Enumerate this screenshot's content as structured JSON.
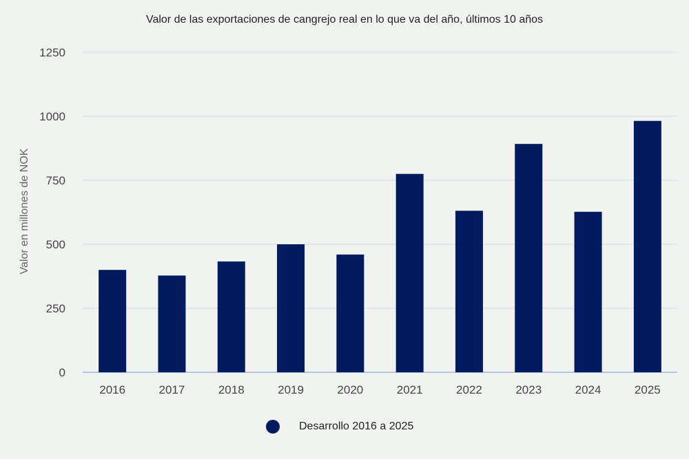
{
  "chart_data": {
    "type": "bar",
    "title": "Valor de las exportaciones de cangrejo real en lo que va del año, últimos 10 años",
    "xlabel": "",
    "ylabel": "Valor en millones de NOK",
    "categories": [
      "2016",
      "2017",
      "2018",
      "2019",
      "2020",
      "2021",
      "2022",
      "2023",
      "2024",
      "2025"
    ],
    "series": [
      {
        "name": "Desarrollo 2016 a 2025",
        "values": [
          400,
          378,
          433,
          500,
          460,
          775,
          631,
          892,
          627,
          982
        ]
      }
    ],
    "ylim": [
      0,
      1250
    ],
    "yticks": [
      0,
      250,
      500,
      750,
      1000,
      1250
    ],
    "grid": true,
    "legend_position": "bottom",
    "colors": {
      "bar": "#021b5e",
      "grid": "#d9dde3",
      "baseline": "#9fb4d6",
      "background": "#f1f3f1"
    }
  }
}
